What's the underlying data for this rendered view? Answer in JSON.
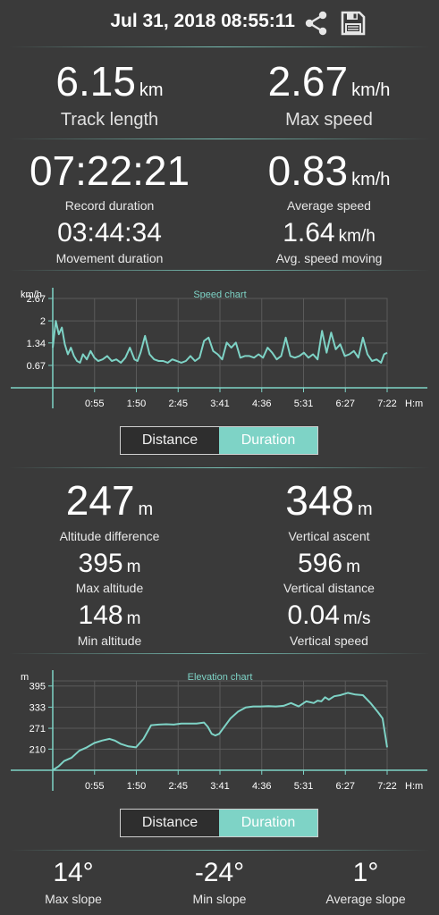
{
  "header": {
    "datetime": "Jul 31, 2018 08:55:11",
    "share_icon": "share-icon",
    "save_icon": "save-icon"
  },
  "stats_top": {
    "track_length": {
      "value": "6.15",
      "unit": "km",
      "label": "Track length"
    },
    "max_speed": {
      "value": "2.67",
      "unit": "km/h",
      "label": "Max speed"
    },
    "record_duration": {
      "value": "07:22:21",
      "label": "Record duration"
    },
    "average_speed": {
      "value": "0.83",
      "unit": "km/h",
      "label": "Average speed"
    },
    "movement_duration": {
      "value": "03:44:34",
      "label": "Movement duration"
    },
    "avg_speed_moving": {
      "value": "1.64",
      "unit": "km/h",
      "label": "Avg. speed moving"
    }
  },
  "speed_toggle": {
    "distance": "Distance",
    "duration": "Duration",
    "selected": "Duration"
  },
  "altitude": {
    "difference": {
      "value": "247",
      "unit": "m",
      "label": "Altitude difference"
    },
    "vertical_ascent": {
      "value": "348",
      "unit": "m",
      "label": "Vertical ascent"
    },
    "max_altitude": {
      "value": "395",
      "unit": "m",
      "label": "Max altitude"
    },
    "vertical_distance": {
      "value": "596",
      "unit": "m",
      "label": "Vertical distance"
    },
    "min_altitude": {
      "value": "148",
      "unit": "m",
      "label": "Min altitude"
    },
    "vertical_speed": {
      "value": "0.04",
      "unit": "m/s",
      "label": "Vertical speed"
    }
  },
  "elevation_toggle": {
    "distance": "Distance",
    "duration": "Duration",
    "selected": "Duration"
  },
  "slopes": {
    "max": {
      "value": "14°",
      "label": "Max slope"
    },
    "min": {
      "value": "-24°",
      "label": "Min slope"
    },
    "avg": {
      "value": "1°",
      "label": "Average slope"
    }
  },
  "colors": {
    "accent": "#7ed3c6",
    "background": "#3a3a3a"
  },
  "chart_data": [
    {
      "type": "line",
      "title": "Speed chart",
      "ylabel": "km/h",
      "xlabel": "H:m",
      "x_ticks": [
        "0:55",
        "1:50",
        "2:45",
        "3:41",
        "4:36",
        "5:31",
        "6:27",
        "7:22"
      ],
      "y_ticks": [
        "0.67",
        "1.34",
        "2",
        "2.67"
      ],
      "ylim": [
        0,
        2.67
      ],
      "xlim_minutes": [
        0,
        442
      ],
      "grid": true,
      "series": [
        {
          "x_minutes": [
            0,
            4,
            8,
            12,
            16,
            20,
            24,
            28,
            32,
            36,
            40,
            45,
            50,
            55,
            60,
            66,
            72,
            78,
            84,
            90,
            96,
            102,
            108,
            112,
            116,
            122,
            128,
            134,
            140,
            146,
            152,
            158,
            164,
            170,
            176,
            182,
            188,
            194,
            200,
            206,
            212,
            218,
            224,
            230,
            236,
            242,
            248,
            254,
            260,
            266,
            272,
            278,
            284,
            290,
            296,
            302,
            308,
            314,
            320,
            326,
            332,
            338,
            344,
            350,
            356,
            362,
            368,
            374,
            380,
            386,
            392,
            398,
            404,
            410,
            416,
            422,
            428,
            434,
            438,
            442
          ],
          "values": [
            1.2,
            2.0,
            1.6,
            1.8,
            1.3,
            1.0,
            1.2,
            0.95,
            0.8,
            0.75,
            1.0,
            0.85,
            1.1,
            0.9,
            0.8,
            0.85,
            0.95,
            0.8,
            0.85,
            0.75,
            0.9,
            1.2,
            0.85,
            0.8,
            1.05,
            1.55,
            1.0,
            0.85,
            0.8,
            0.8,
            0.75,
            0.85,
            0.8,
            0.75,
            0.8,
            0.95,
            0.8,
            0.9,
            1.4,
            1.5,
            1.1,
            1.0,
            0.85,
            1.35,
            1.2,
            1.35,
            0.9,
            0.95,
            0.95,
            0.9,
            1.0,
            0.9,
            1.2,
            1.05,
            0.85,
            0.95,
            1.5,
            0.95,
            0.9,
            0.95,
            1.05,
            0.9,
            1.0,
            0.85,
            1.7,
            1.05,
            1.65,
            1.15,
            1.3,
            0.95,
            1.0,
            1.1,
            0.9,
            1.5,
            1.0,
            0.8,
            0.85,
            0.75,
            1.0,
            1.05
          ]
        }
      ]
    },
    {
      "type": "line",
      "title": "Elevation chart",
      "ylabel": "m",
      "xlabel": "H:m",
      "x_ticks": [
        "0:55",
        "1:50",
        "2:45",
        "3:41",
        "4:36",
        "5:31",
        "6:27",
        "7:22"
      ],
      "y_ticks": [
        "210",
        "271",
        "333",
        "395"
      ],
      "ylim": [
        148,
        410
      ],
      "xlim_minutes": [
        0,
        442
      ],
      "grid": true,
      "series": [
        {
          "x_minutes": [
            0,
            8,
            15,
            25,
            35,
            45,
            55,
            65,
            75,
            82,
            90,
            100,
            110,
            120,
            130,
            140,
            150,
            160,
            170,
            180,
            190,
            200,
            205,
            210,
            215,
            220,
            225,
            235,
            245,
            255,
            265,
            275,
            285,
            295,
            305,
            315,
            325,
            335,
            345,
            350,
            355,
            360,
            365,
            372,
            380,
            390,
            400,
            410,
            420,
            430,
            436,
            442
          ],
          "values": [
            148,
            160,
            175,
            185,
            205,
            215,
            228,
            235,
            240,
            235,
            225,
            218,
            215,
            240,
            280,
            282,
            283,
            282,
            285,
            285,
            285,
            288,
            275,
            255,
            250,
            255,
            270,
            300,
            320,
            332,
            335,
            335,
            336,
            335,
            337,
            345,
            335,
            350,
            345,
            352,
            350,
            362,
            355,
            365,
            368,
            375,
            370,
            368,
            345,
            318,
            300,
            215
          ]
        }
      ]
    }
  ]
}
